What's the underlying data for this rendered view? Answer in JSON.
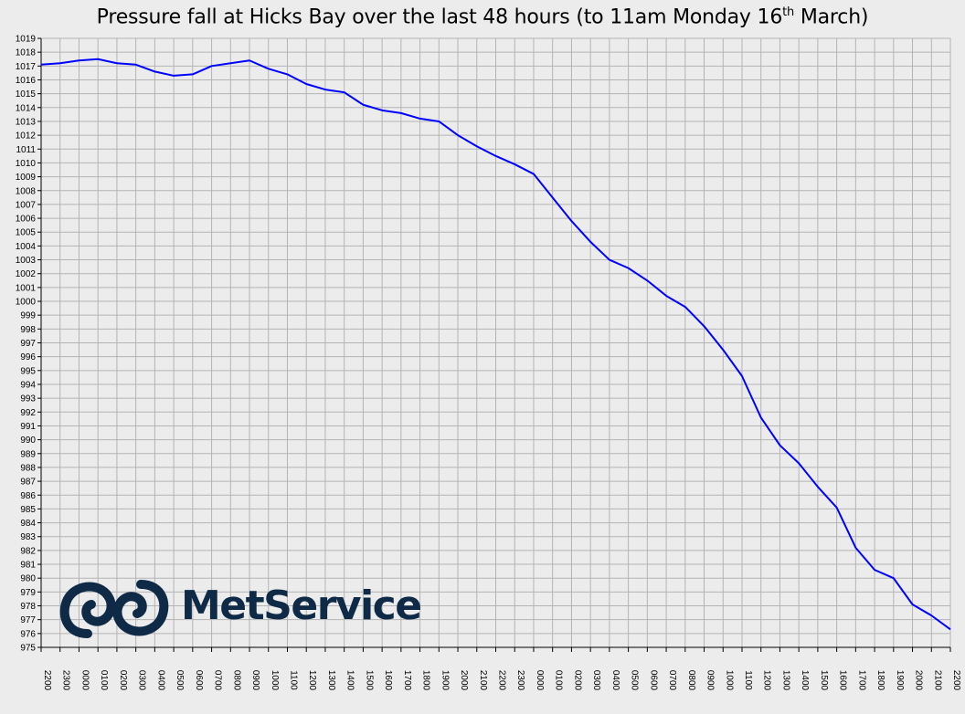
{
  "title": {
    "main": "Pressure fall at Hicks Bay over the last 48 hours (to 11am Monday 16",
    "sup": "th",
    "tail": " March)"
  },
  "logo": {
    "text": "MetService",
    "icon": "metservice-koru-logo-icon",
    "color": "#0f2a47"
  },
  "colors": {
    "line": "#0000ff",
    "background": "#ececec",
    "grid": "#b4b4b4"
  },
  "chart_data": {
    "type": "line",
    "title": "Pressure fall at Hicks Bay over the last 48 hours (to 11am Monday 16th March)",
    "xlabel": "",
    "ylabel": "",
    "ylim": [
      975,
      1019
    ],
    "y_ticks": [
      1019,
      1018,
      1017,
      1016,
      1015,
      1014,
      1013,
      1012,
      1011,
      1010,
      1009,
      1008,
      1007,
      1006,
      1005,
      1004,
      1003,
      1002,
      1001,
      1000,
      999,
      998,
      997,
      996,
      995,
      994,
      993,
      992,
      991,
      990,
      989,
      988,
      987,
      986,
      985,
      984,
      983,
      982,
      981,
      980,
      979,
      978,
      977,
      976,
      975
    ],
    "grid": true,
    "categories": [
      "2200",
      "2300",
      "0000",
      "0100",
      "0200",
      "0300",
      "0400",
      "0500",
      "0600",
      "0700",
      "0800",
      "0900",
      "1000",
      "1100",
      "1200",
      "1300",
      "1400",
      "1500",
      "1600",
      "1700",
      "1800",
      "1900",
      "2000",
      "2100",
      "2200",
      "2300",
      "0000",
      "0100",
      "0200",
      "0300",
      "0400",
      "0500",
      "0600",
      "0700",
      "0800",
      "0900",
      "1000",
      "1100",
      "1200",
      "1300",
      "1400",
      "1500",
      "1600",
      "1700",
      "1800",
      "1900",
      "2000",
      "2100",
      "2200"
    ],
    "series": [
      {
        "values": [
          1017.1,
          1017.2,
          1017.4,
          1017.5,
          1017.2,
          1017.1,
          1016.6,
          1016.3,
          1016.4,
          1017.0,
          1017.2,
          1017.4,
          1016.8,
          1016.4,
          1015.7,
          1015.3,
          1015.1,
          1014.2,
          1013.8,
          1013.6,
          1013.2,
          1013.0,
          1012.0,
          1011.2,
          1010.5,
          1009.9,
          1009.2,
          1007.5,
          1005.8,
          1004.3,
          1003.0,
          1002.4,
          1001.5,
          1000.4,
          999.6,
          998.2,
          996.5,
          994.6,
          991.6,
          989.6,
          988.3,
          986.6,
          985.1,
          982.2,
          980.6,
          980.0,
          978.1,
          977.3,
          976.3
        ]
      }
    ]
  }
}
